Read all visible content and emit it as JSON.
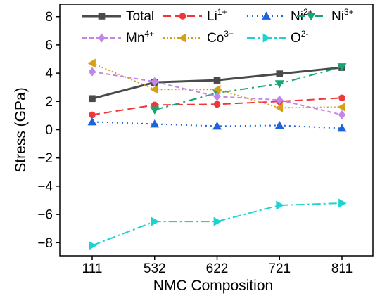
{
  "chart_data": {
    "type": "line",
    "xlabel": "NMC Composition",
    "ylabel": "Stress (GPa)",
    "categories": [
      "111",
      "532",
      "622",
      "721",
      "811"
    ],
    "ylim": [
      -9,
      9
    ],
    "yticks": [
      -8,
      -6,
      -4,
      -2,
      0,
      2,
      4,
      6,
      8
    ],
    "ytick_labels": [
      "−8",
      "−6",
      "−4",
      "−2",
      "0",
      "2",
      "4",
      "6",
      "8"
    ],
    "grid": false,
    "legend": "top",
    "series": [
      {
        "name": "Total",
        "base": "Total",
        "sup": "",
        "color": "#4a4a4a",
        "dash": "",
        "marker": "square",
        "width": 3,
        "values": [
          2.2,
          3.35,
          3.5,
          3.95,
          4.4
        ]
      },
      {
        "name": "Li1+",
        "base": "Li",
        "sup": "1+",
        "color": "#f0373a",
        "dash": "11,6",
        "marker": "circle",
        "width": 2,
        "values": [
          1.05,
          1.75,
          1.8,
          2.0,
          2.25
        ]
      },
      {
        "name": "Ni2+",
        "base": "Ni",
        "sup": "2+",
        "color": "#1f63d8",
        "dash": "2,5",
        "marker": "triangle-up",
        "width": 2,
        "values": [
          0.55,
          0.4,
          0.25,
          0.3,
          0.1
        ]
      },
      {
        "name": "Ni3+",
        "base": "Ni",
        "sup": "3+",
        "color": "#17a673",
        "dash": "12,5,3,5",
        "marker": "triangle-down",
        "width": 2,
        "values": [
          null,
          1.4,
          2.6,
          3.25,
          4.45
        ]
      },
      {
        "name": "Mn4+",
        "base": "Mn",
        "sup": "4+",
        "color": "#c584e8",
        "dash": "6,4",
        "marker": "diamond",
        "width": 2,
        "values": [
          4.1,
          3.4,
          2.35,
          2.1,
          1.05
        ]
      },
      {
        "name": "Co3+",
        "base": "Co",
        "sup": "3+",
        "color": "#d4a015",
        "dash": "2,3",
        "marker": "triangle-left",
        "width": 2,
        "values": [
          4.7,
          2.85,
          2.85,
          1.55,
          1.6
        ]
      },
      {
        "name": "O2-",
        "base": "O",
        "sup": "2-",
        "color": "#1ed2d2",
        "dash": "12,4,3,4",
        "marker": "triangle-right",
        "width": 2,
        "values": [
          -8.2,
          -6.5,
          -6.5,
          -5.35,
          -5.2
        ]
      }
    ]
  }
}
